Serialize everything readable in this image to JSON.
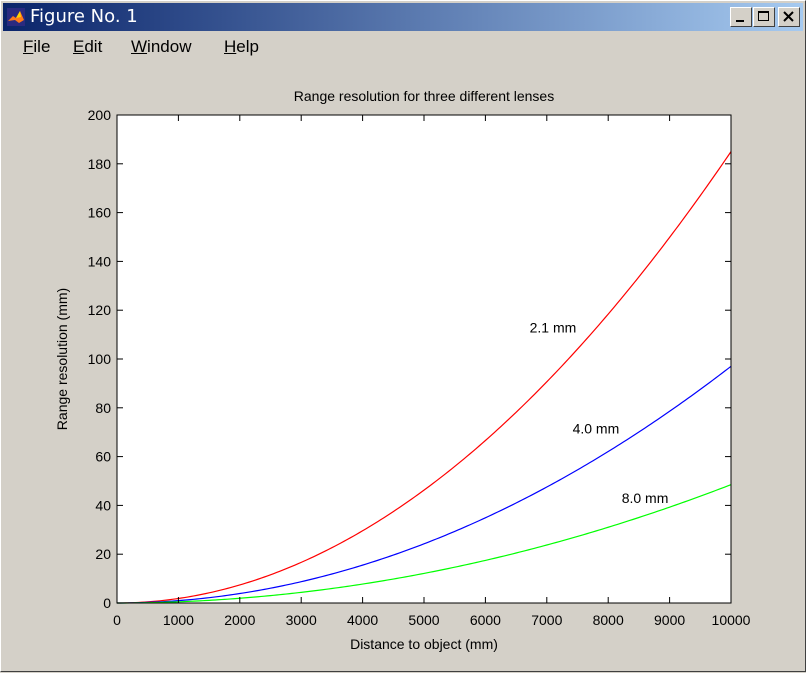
{
  "window": {
    "title": "Figure No. 1",
    "icon": "matlab-logo-icon",
    "controls": [
      "minimize",
      "maximize",
      "close"
    ]
  },
  "menu": {
    "items": [
      "File",
      "Edit",
      "Window",
      "Help"
    ]
  },
  "colors": {
    "lens_2_1": "#ff0000",
    "lens_4_0": "#0000ff",
    "lens_8_0": "#00ff00",
    "figure_bg": "#d4d0c8",
    "axes_bg": "#ffffff"
  },
  "chart_data": {
    "type": "line",
    "title": "Range resolution for three different lenses",
    "xlabel": "Distance to object (mm)",
    "ylabel": "Range resolution (mm)",
    "xlim": [
      0,
      10000
    ],
    "ylim": [
      0,
      200
    ],
    "xticks": [
      0,
      1000,
      2000,
      3000,
      4000,
      5000,
      6000,
      7000,
      8000,
      9000,
      10000
    ],
    "yticks": [
      0,
      20,
      40,
      60,
      80,
      100,
      120,
      140,
      160,
      180,
      200
    ],
    "grid": false,
    "x": [
      0,
      1000,
      2000,
      3000,
      4000,
      5000,
      6000,
      7000,
      8000,
      9000,
      10000
    ],
    "series": [
      {
        "name": "2.1 mm",
        "color": "#ff0000",
        "values": [
          0,
          1.8,
          7.4,
          16.7,
          29.6,
          46.3,
          66.6,
          90.7,
          118.5,
          149.9,
          185
        ]
      },
      {
        "name": "4.0 mm",
        "color": "#0000ff",
        "values": [
          0,
          1.0,
          3.9,
          8.7,
          15.5,
          24.3,
          35.0,
          47.6,
          62.2,
          78.7,
          97
        ]
      },
      {
        "name": "8.0 mm",
        "color": "#00ff00",
        "values": [
          0,
          0.5,
          1.9,
          4.4,
          7.8,
          12.1,
          17.5,
          23.8,
          31.1,
          39.4,
          48.5
        ]
      }
    ],
    "annotations": [
      {
        "text": "2.1 mm",
        "x": 7100,
        "y": 113
      },
      {
        "text": "4.0 mm",
        "x": 7800,
        "y": 71.5
      },
      {
        "text": "8.0 mm",
        "x": 8600,
        "y": 43
      }
    ]
  }
}
